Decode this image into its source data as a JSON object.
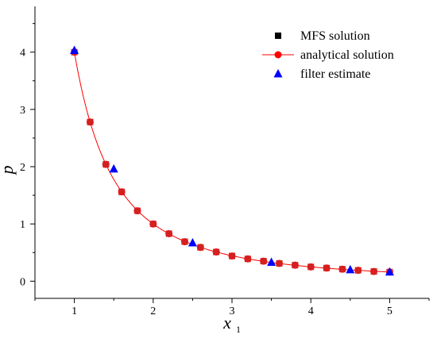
{
  "chart_data": {
    "type": "scatter",
    "xlabel": "x",
    "xlabel_sub": "1",
    "ylabel": "p",
    "xlim": [
      0.5,
      5.5
    ],
    "ylim": [
      -0.3,
      4.8
    ],
    "x_ticks": [
      "1",
      "2",
      "3",
      "4",
      "5"
    ],
    "y_ticks": [
      "0",
      "1",
      "2",
      "3",
      "4"
    ],
    "grid": false,
    "legend": "top-right",
    "series": [
      {
        "name": "MFS solution",
        "marker": "square",
        "color": "#d42020",
        "legend_color": "#000000",
        "x": [
          1.0,
          1.2,
          1.4,
          1.6,
          1.8,
          2.0,
          2.2,
          2.4,
          2.6,
          2.8,
          3.0,
          3.2,
          3.4,
          3.6,
          3.8,
          4.0,
          4.2,
          4.4,
          4.6,
          4.8,
          5.0
        ],
        "y": [
          4.0,
          2.78,
          2.04,
          1.56,
          1.23,
          1.0,
          0.83,
          0.69,
          0.59,
          0.51,
          0.44,
          0.39,
          0.35,
          0.31,
          0.28,
          0.25,
          0.23,
          0.21,
          0.19,
          0.17,
          0.16
        ]
      },
      {
        "name": "analytical solution",
        "marker": "circle-line",
        "color": "#ff0000",
        "x": [
          1.0,
          1.2,
          1.4,
          1.6,
          1.8,
          2.0,
          2.2,
          2.4,
          2.6,
          2.8,
          3.0,
          3.2,
          3.4,
          3.6,
          3.8,
          4.0,
          4.2,
          4.4,
          4.6,
          4.8,
          5.0
        ],
        "y": [
          4.0,
          2.78,
          2.04,
          1.56,
          1.23,
          1.0,
          0.83,
          0.69,
          0.59,
          0.51,
          0.44,
          0.39,
          0.35,
          0.31,
          0.28,
          0.25,
          0.23,
          0.21,
          0.19,
          0.17,
          0.16
        ]
      },
      {
        "name": "filter estimate",
        "marker": "triangle",
        "color": "#0000ff",
        "x": [
          1.0,
          1.5,
          2.5,
          3.5,
          4.5,
          5.0
        ],
        "y": [
          4.03,
          1.96,
          0.67,
          0.33,
          0.2,
          0.16
        ]
      }
    ]
  }
}
